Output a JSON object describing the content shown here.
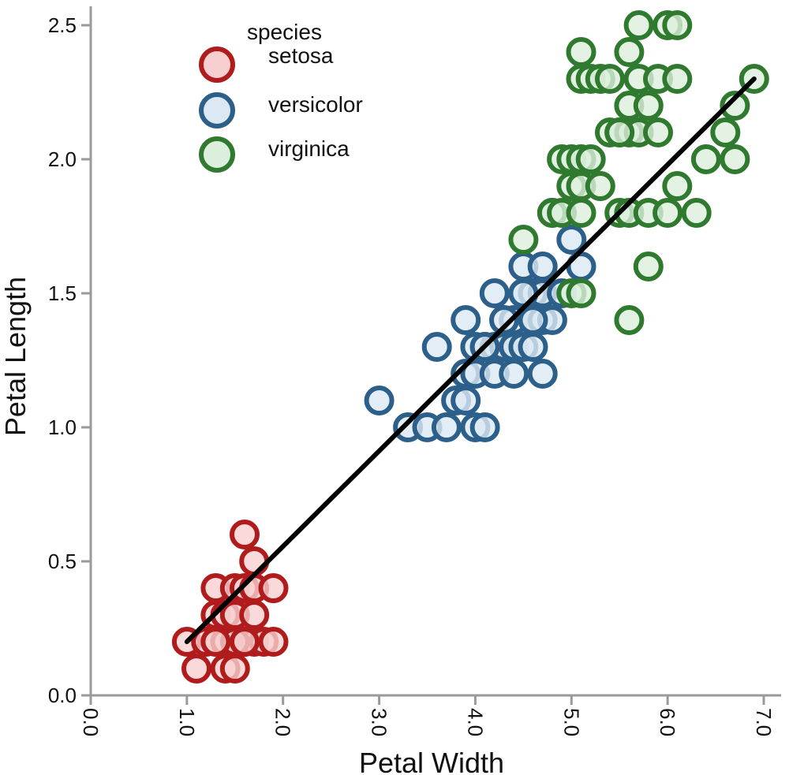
{
  "chart_data": {
    "type": "scatter",
    "xlabel": "Petal Width",
    "ylabel": "Petal Length",
    "xlim": [
      0.0,
      7.0
    ],
    "ylim": [
      0.0,
      2.5
    ],
    "xticks": [
      "0.0",
      "1.0",
      "2.0",
      "3.0",
      "4.0",
      "5.0",
      "6.0",
      "7.0"
    ],
    "yticks": [
      "0.0",
      "0.5",
      "1.0",
      "1.5",
      "2.0",
      "2.5"
    ],
    "grid": false,
    "legend": {
      "title": "species",
      "placement": "top-left",
      "entries": [
        "setosa",
        "versicolor",
        "virginica"
      ]
    },
    "series": [
      {
        "name": "setosa",
        "stroke": "#b01c1c",
        "fill": "#f7cfd0",
        "points": [
          [
            1.0,
            0.2
          ],
          [
            1.1,
            0.1
          ],
          [
            1.2,
            0.2
          ],
          [
            1.3,
            0.4
          ],
          [
            1.3,
            0.3
          ],
          [
            1.3,
            0.2
          ],
          [
            1.4,
            0.2
          ],
          [
            1.4,
            0.3
          ],
          [
            1.4,
            0.1
          ],
          [
            1.4,
            0.2
          ],
          [
            1.5,
            0.2
          ],
          [
            1.5,
            0.4
          ],
          [
            1.5,
            0.3
          ],
          [
            1.5,
            0.1
          ],
          [
            1.5,
            0.2
          ],
          [
            1.6,
            0.2
          ],
          [
            1.6,
            0.4
          ],
          [
            1.6,
            0.6
          ],
          [
            1.6,
            0.2
          ],
          [
            1.7,
            0.4
          ],
          [
            1.7,
            0.5
          ],
          [
            1.7,
            0.3
          ],
          [
            1.7,
            0.2
          ],
          [
            1.8,
            0.2
          ],
          [
            1.9,
            0.4
          ],
          [
            1.9,
            0.2
          ],
          [
            1.4,
            0.2
          ],
          [
            1.5,
            0.2
          ],
          [
            1.6,
            0.2
          ],
          [
            1.3,
            0.2
          ]
        ]
      },
      {
        "name": "versicolor",
        "stroke": "#2c5f8a",
        "fill": "#dce8f3",
        "points": [
          [
            3.0,
            1.1
          ],
          [
            3.3,
            1.0
          ],
          [
            3.5,
            1.0
          ],
          [
            3.6,
            1.3
          ],
          [
            3.7,
            1.0
          ],
          [
            3.8,
            1.1
          ],
          [
            3.9,
            1.1
          ],
          [
            3.9,
            1.2
          ],
          [
            3.9,
            1.4
          ],
          [
            4.0,
            1.0
          ],
          [
            4.0,
            1.3
          ],
          [
            4.0,
            1.2
          ],
          [
            4.1,
            1.0
          ],
          [
            4.1,
            1.3
          ],
          [
            4.2,
            1.3
          ],
          [
            4.2,
            1.2
          ],
          [
            4.2,
            1.5
          ],
          [
            4.3,
            1.3
          ],
          [
            4.4,
            1.3
          ],
          [
            4.4,
            1.4
          ],
          [
            4.4,
            1.2
          ],
          [
            4.5,
            1.5
          ],
          [
            4.5,
            1.3
          ],
          [
            4.5,
            1.6
          ],
          [
            4.6,
            1.3
          ],
          [
            4.6,
            1.4
          ],
          [
            4.6,
            1.5
          ],
          [
            4.7,
            1.4
          ],
          [
            4.7,
            1.2
          ],
          [
            4.7,
            1.6
          ],
          [
            4.7,
            1.5
          ],
          [
            4.8,
            1.8
          ],
          [
            4.8,
            1.4
          ],
          [
            4.9,
            1.5
          ],
          [
            5.0,
            1.7
          ],
          [
            5.1,
            1.6
          ],
          [
            4.1,
            1.3
          ],
          [
            4.3,
            1.4
          ],
          [
            4.5,
            1.5
          ],
          [
            4.6,
            1.4
          ]
        ]
      },
      {
        "name": "virginica",
        "stroke": "#2f7a2f",
        "fill": "#dcefdc",
        "points": [
          [
            4.5,
            1.7
          ],
          [
            4.8,
            1.8
          ],
          [
            4.9,
            1.8
          ],
          [
            4.9,
            2.0
          ],
          [
            5.0,
            2.0
          ],
          [
            5.0,
            1.5
          ],
          [
            5.0,
            1.9
          ],
          [
            5.1,
            2.4
          ],
          [
            5.1,
            2.3
          ],
          [
            5.1,
            1.9
          ],
          [
            5.1,
            2.0
          ],
          [
            5.1,
            1.5
          ],
          [
            5.1,
            1.8
          ],
          [
            5.2,
            2.3
          ],
          [
            5.2,
            2.0
          ],
          [
            5.3,
            2.3
          ],
          [
            5.3,
            1.9
          ],
          [
            5.4,
            2.1
          ],
          [
            5.4,
            2.3
          ],
          [
            5.5,
            2.1
          ],
          [
            5.5,
            1.8
          ],
          [
            5.6,
            2.4
          ],
          [
            5.6,
            2.2
          ],
          [
            5.6,
            2.1
          ],
          [
            5.6,
            1.8
          ],
          [
            5.6,
            1.4
          ],
          [
            5.7,
            2.5
          ],
          [
            5.7,
            2.3
          ],
          [
            5.7,
            2.1
          ],
          [
            5.8,
            2.2
          ],
          [
            5.8,
            1.8
          ],
          [
            5.8,
            1.6
          ],
          [
            5.9,
            2.3
          ],
          [
            5.9,
            2.1
          ],
          [
            6.0,
            2.5
          ],
          [
            6.0,
            1.8
          ],
          [
            6.1,
            2.5
          ],
          [
            6.1,
            2.3
          ],
          [
            6.1,
            1.9
          ],
          [
            6.3,
            1.8
          ],
          [
            6.4,
            2.0
          ],
          [
            6.6,
            2.1
          ],
          [
            6.7,
            2.2
          ],
          [
            6.7,
            2.0
          ],
          [
            6.9,
            2.3
          ],
          [
            5.5,
            2.1
          ]
        ]
      }
    ],
    "trendline": {
      "color": "#000000",
      "from": [
        1.0,
        0.2
      ],
      "to": [
        6.9,
        2.3
      ]
    }
  }
}
